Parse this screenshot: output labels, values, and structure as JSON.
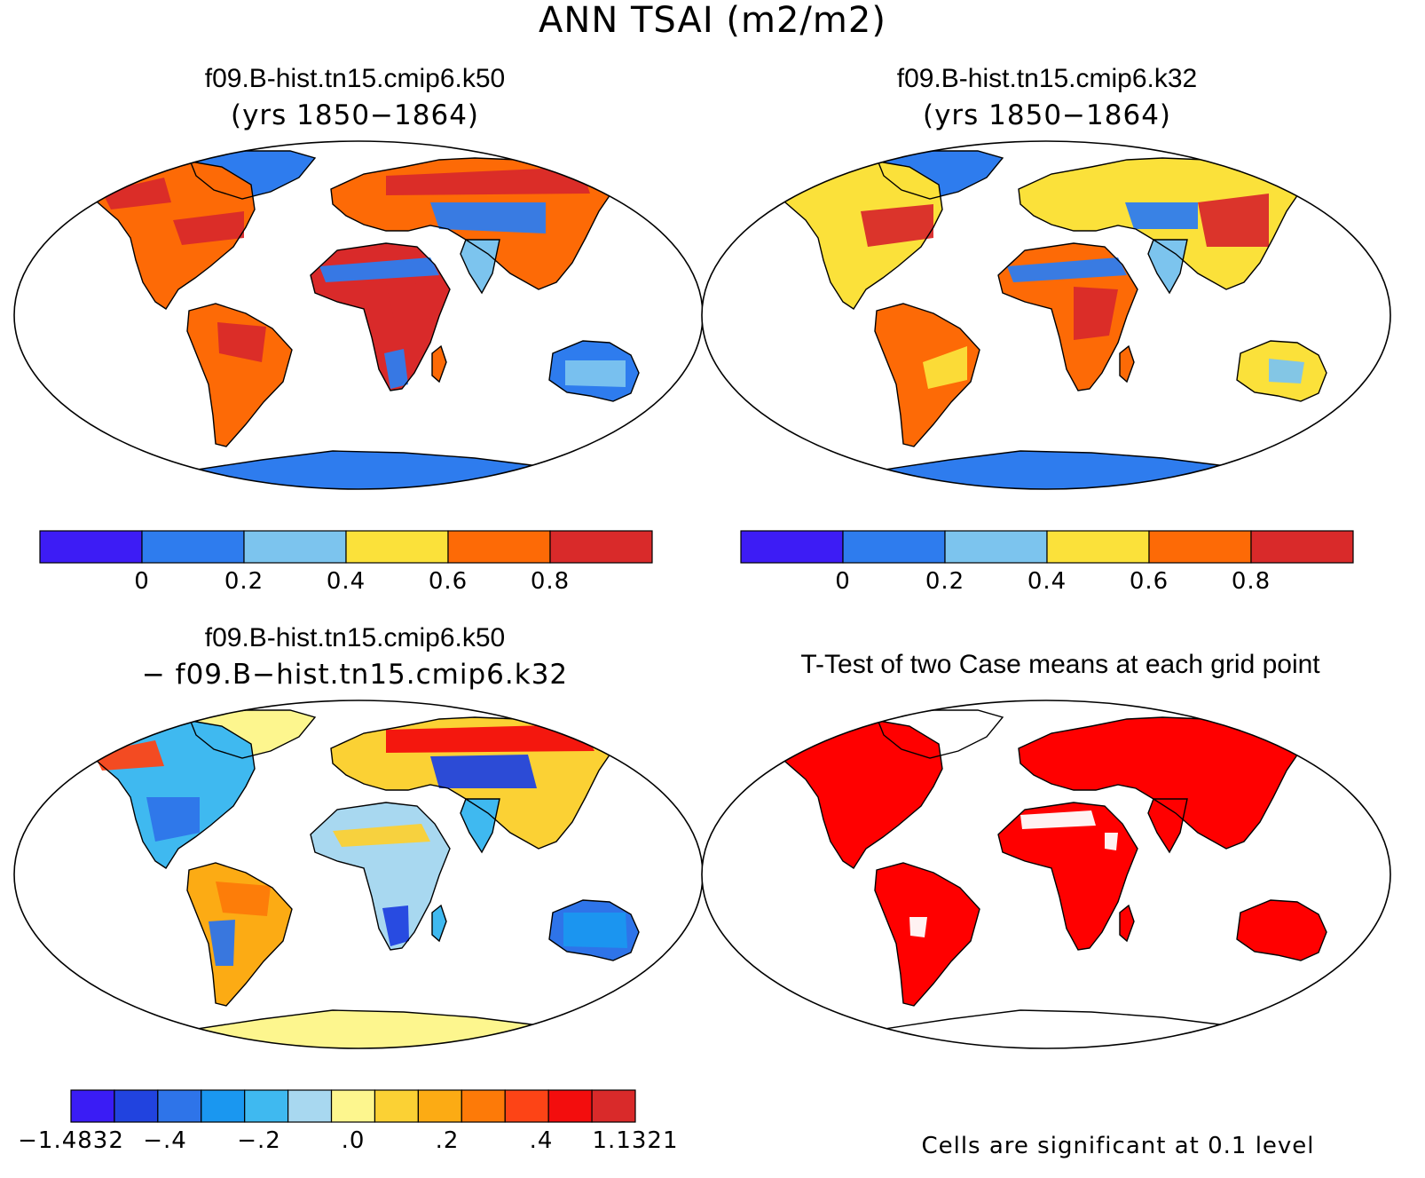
{
  "page": {
    "title": "ANN TSAI (m2/m2)"
  },
  "panels": [
    {
      "id": "case1",
      "title": "f09.B-hist.tn15.cmip6.k50",
      "subtitle": "(yrs 1850−1864)"
    },
    {
      "id": "case2",
      "title": "f09.B-hist.tn15.cmip6.k32",
      "subtitle": "(yrs 1850−1864)"
    },
    {
      "id": "diff",
      "title": "f09.B-hist.tn15.cmip6.k50",
      "subtitle": "− f09.B−hist.tn15.cmip6.k32"
    },
    {
      "id": "ttest",
      "title": "T-Test of two Case means at each grid point",
      "note": "Cells are significant at 0.1 level"
    }
  ],
  "colorbars": {
    "case": {
      "colors": [
        "#3d1cf5",
        "#2e7cee",
        "#7cc4ee",
        "#fbe13a",
        "#fd6a06",
        "#d92a2a"
      ],
      "tick_labels": [
        "0",
        "0.2",
        "0.4",
        "0.6",
        "0.8"
      ]
    },
    "diff": {
      "colors": [
        "#3a1cf5",
        "#2143df",
        "#2e74e9",
        "#1a97f0",
        "#3fb9f0",
        "#a8d8f0",
        "#fdf68e",
        "#fbd134",
        "#fcab14",
        "#fd7a08",
        "#fd4416",
        "#f30d0d",
        "#d92a2a"
      ],
      "tick_labels": [
        "−1.4832",
        "−.4",
        "−.2",
        ".0",
        ".2",
        ".4",
        "1.1321"
      ]
    }
  },
  "map_fill": {
    "ocean": "#ffffff",
    "coast": "#000000",
    "significant": "#ff0000",
    "antarctica_case": "#2e7cee",
    "antarctica_diff": "#fdf68e"
  }
}
